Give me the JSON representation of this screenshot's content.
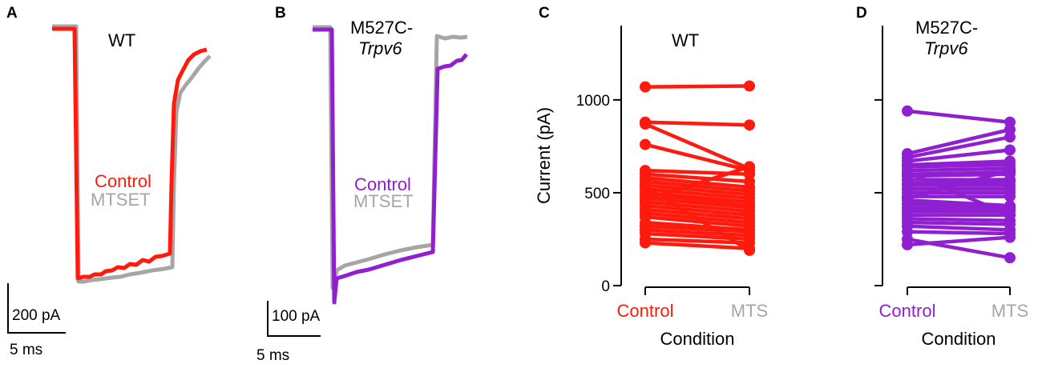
{
  "colors": {
    "wt": "#ff1a0d",
    "m527c": "#8f1fd1",
    "mtset": "#a6a6a6",
    "axis": "#000000"
  },
  "panels": {
    "a": {
      "letter": "A",
      "title": "WT",
      "control_label": "Control",
      "mtset_label": "MTSET",
      "scale_current": "200 pA",
      "scale_time": "5 ms"
    },
    "b": {
      "letter": "B",
      "title_line1": "M527C-",
      "title_line2": "Trpv6",
      "control_label": "Control",
      "mtset_label": "MTSET",
      "scale_current": "100 pA",
      "scale_time": "5 ms"
    },
    "c": {
      "letter": "C",
      "title": "WT"
    },
    "d": {
      "letter": "D",
      "title_line1": "M527C-",
      "title_line2": "Trpv6"
    }
  },
  "chart_data": [
    {
      "type": "line",
      "panel": "A",
      "title": "WT",
      "xlabel": "time (scale bar 5 ms)",
      "ylabel": "current (scale bar 200 pA)",
      "series": [
        {
          "name": "Control",
          "description": "WT current trace before MTSET"
        },
        {
          "name": "MTSET",
          "description": "WT current trace after MTSET"
        }
      ]
    },
    {
      "type": "line",
      "panel": "B",
      "title": "M527C-Trpv6",
      "xlabel": "time (scale bar 5 ms)",
      "ylabel": "current (scale bar 100 pA)",
      "series": [
        {
          "name": "Control",
          "description": "M527C-Trpv6 current trace before MTSET"
        },
        {
          "name": "MTSET",
          "description": "M527C-Trpv6 current trace after MTSET"
        }
      ]
    },
    {
      "type": "scatter",
      "panel": "C",
      "title": "WT",
      "xlabel": "Condition",
      "ylabel": "Current (pA)",
      "categories": [
        "Control",
        "MTS"
      ],
      "ylim": [
        0,
        1400
      ],
      "yticks": [
        0,
        500,
        1000
      ],
      "pairs": [
        [
          1070,
          1075
        ],
        [
          880,
          865
        ],
        [
          870,
          630
        ],
        [
          760,
          620
        ],
        [
          620,
          600
        ],
        [
          600,
          560
        ],
        [
          580,
          530
        ],
        [
          560,
          510
        ],
        [
          540,
          490
        ],
        [
          520,
          470
        ],
        [
          500,
          450
        ],
        [
          490,
          430
        ],
        [
          470,
          420
        ],
        [
          450,
          400
        ],
        [
          430,
          380
        ],
        [
          410,
          360
        ],
        [
          390,
          340
        ],
        [
          370,
          320
        ],
        [
          340,
          300
        ],
        [
          320,
          290
        ],
        [
          300,
          270
        ],
        [
          280,
          250
        ],
        [
          250,
          230
        ],
        [
          230,
          200
        ],
        [
          530,
          190
        ],
        [
          460,
          640
        ]
      ]
    },
    {
      "type": "scatter",
      "panel": "D",
      "title": "M527C-Trpv6",
      "xlabel": "Condition",
      "ylabel": "Current (pA)",
      "categories": [
        "Control",
        "MTS"
      ],
      "ylim": [
        0,
        1400
      ],
      "yticks": [
        0,
        500,
        1000
      ],
      "pairs": [
        [
          940,
          880
        ],
        [
          710,
          840
        ],
        [
          690,
          800
        ],
        [
          670,
          730
        ],
        [
          650,
          670
        ],
        [
          640,
          650
        ],
        [
          620,
          630
        ],
        [
          600,
          610
        ],
        [
          590,
          600
        ],
        [
          570,
          570
        ],
        [
          550,
          560
        ],
        [
          540,
          540
        ],
        [
          520,
          520
        ],
        [
          500,
          500
        ],
        [
          480,
          480
        ],
        [
          460,
          430
        ],
        [
          440,
          420
        ],
        [
          420,
          410
        ],
        [
          400,
          400
        ],
        [
          380,
          380
        ],
        [
          360,
          350
        ],
        [
          340,
          330
        ],
        [
          320,
          300
        ],
        [
          290,
          280
        ],
        [
          220,
          260
        ],
        [
          250,
          150
        ],
        [
          610,
          380
        ],
        [
          470,
          620
        ]
      ]
    }
  ]
}
